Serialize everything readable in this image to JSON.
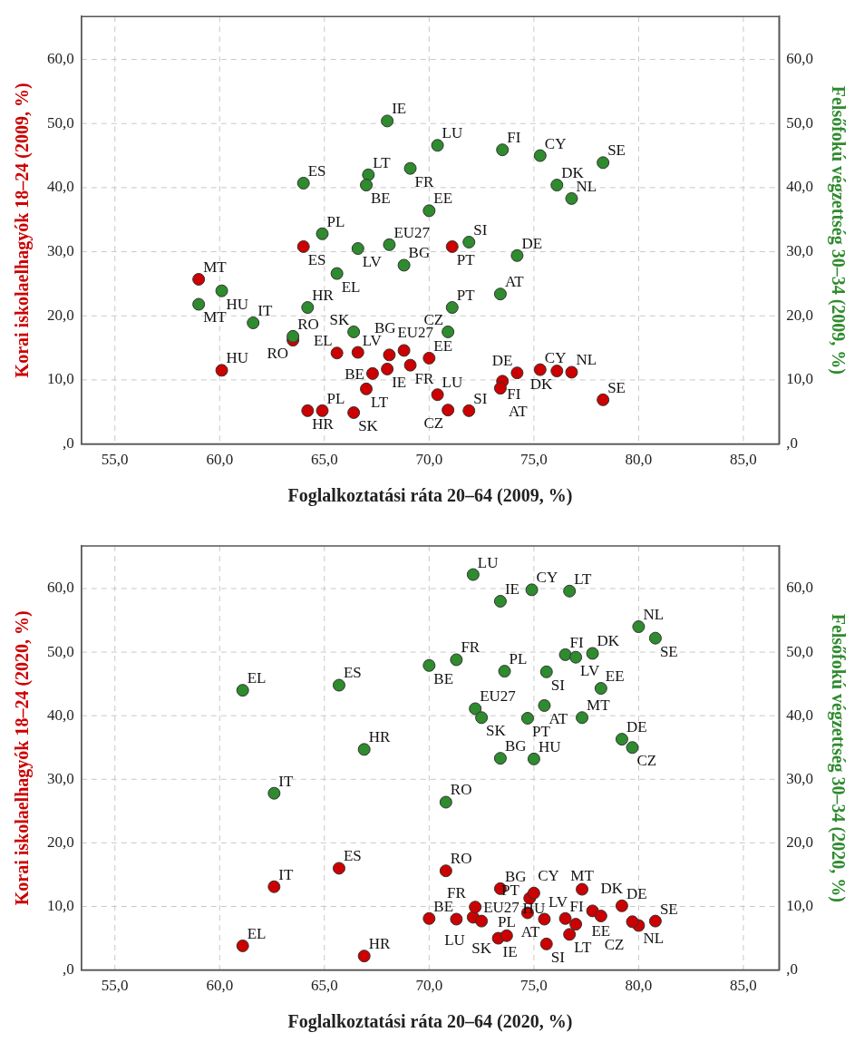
{
  "chart_data": [
    {
      "type": "scatter",
      "xlabel": "Foglalkoztatási ráta 20–64 (2009, %)",
      "ylabel": "Korai iskolaelhagyók 18–24 (2009, %)",
      "y2label": "Felsőfokú végzettség 30–34 (2009, %)",
      "xlim": [
        53.4,
        86.7
      ],
      "ylim": [
        0,
        66.7
      ],
      "y2lim": [
        0,
        66.7
      ],
      "xticks": [
        {
          "value": 55,
          "label": "55,0"
        },
        {
          "value": 60,
          "label": "60,0"
        },
        {
          "value": 65,
          "label": "65,0"
        },
        {
          "value": 70,
          "label": "70,0"
        },
        {
          "value": 75,
          "label": "75,0"
        },
        {
          "value": 80,
          "label": "80,0"
        },
        {
          "value": 85,
          "label": "85,0"
        }
      ],
      "yticks": [
        {
          "value": 0,
          "label": ",0"
        },
        {
          "value": 10,
          "label": "10,0"
        },
        {
          "value": 20,
          "label": "20,0"
        },
        {
          "value": 30,
          "label": "30,0"
        },
        {
          "value": 40,
          "label": "40,0"
        },
        {
          "value": 50,
          "label": "50,0"
        },
        {
          "value": 60,
          "label": "60,0"
        }
      ],
      "y2ticks": [
        {
          "value": 0,
          "label": ",0"
        },
        {
          "value": 10,
          "label": "10,0"
        },
        {
          "value": 20,
          "label": "20,0"
        },
        {
          "value": 30,
          "label": "30,0"
        },
        {
          "value": 40,
          "label": "40,0"
        },
        {
          "value": 50,
          "label": "50,0"
        },
        {
          "value": 60,
          "label": "60,0"
        }
      ],
      "grid": true,
      "legend": false,
      "marker": "circle",
      "series": [
        {
          "color": "#cc0000",
          "x": [
            68.0,
            64.0,
            67.0,
            67.3,
            69.1,
            64.9,
            66.6,
            68.1,
            68.8,
            59.0,
            60.1,
            61.6,
            64.2,
            65.6,
            63.5,
            66.4,
            70.4,
            73.5,
            75.3,
            78.3,
            76.1,
            76.8,
            70.0,
            71.9,
            74.2,
            73.4,
            71.1,
            70.9
          ],
          "values": [
            11.7,
            30.8,
            8.6,
            11.0,
            12.3,
            5.2,
            14.3,
            13.9,
            14.6,
            25.7,
            11.5,
            null,
            5.2,
            14.2,
            16.2,
            4.9,
            7.7,
            9.8,
            11.6,
            6.9,
            11.4,
            11.2,
            13.4,
            5.2,
            11.1,
            8.7,
            30.8,
            5.3
          ]
        },
        {
          "color": "#2e8b2e",
          "axis": "y2",
          "x": [
            68.0,
            64.0,
            67.1,
            67.0,
            69.1,
            64.9,
            66.6,
            68.1,
            68.8,
            59.0,
            60.1,
            61.6,
            64.2,
            65.6,
            63.5,
            66.4,
            70.4,
            73.5,
            75.3,
            78.3,
            76.1,
            76.8,
            70.0,
            71.9,
            74.2,
            73.4,
            71.1,
            70.9
          ],
          "values": [
            50.4,
            40.7,
            42.0,
            40.4,
            43.0,
            32.8,
            30.5,
            31.1,
            27.9,
            21.8,
            23.9,
            18.9,
            21.3,
            26.6,
            16.8,
            17.5,
            46.6,
            45.9,
            45.0,
            43.9,
            40.4,
            38.3,
            36.4,
            31.5,
            29.4,
            23.4,
            21.3,
            17.5
          ]
        }
      ],
      "annotations": [
        {
          "text": "IE",
          "x": 68.0,
          "y": 11.7
        },
        {
          "text": "ES",
          "x": 64.0,
          "y": 30.8
        },
        {
          "text": "LT",
          "x": 67.0,
          "y": 8.6
        },
        {
          "text": "BE",
          "x": 67.3,
          "y": 11.0
        },
        {
          "text": "FR",
          "x": 69.1,
          "y": 12.3
        },
        {
          "text": "PL",
          "x": 64.9,
          "y": 5.2
        },
        {
          "text": "LV",
          "x": 66.6,
          "y": 14.3
        },
        {
          "text": "EU27",
          "x": 68.1,
          "y": 13.9
        },
        {
          "text": "BG",
          "x": 68.8,
          "y": 14.6
        },
        {
          "text": "MT",
          "x": 59.0,
          "y": 25.7
        },
        {
          "text": "HU",
          "x": 60.1,
          "y": 11.5
        },
        {
          "text": "HR",
          "x": 64.2,
          "y": 5.2
        },
        {
          "text": "EL",
          "x": 65.6,
          "y": 14.2
        },
        {
          "text": "RO",
          "x": 63.5,
          "y": 16.2
        },
        {
          "text": "SK",
          "x": 66.4,
          "y": 4.9
        },
        {
          "text": "LU",
          "x": 70.4,
          "y": 7.7
        },
        {
          "text": "FI",
          "x": 73.5,
          "y": 9.8
        },
        {
          "text": "CY",
          "x": 75.3,
          "y": 11.6
        },
        {
          "text": "SE",
          "x": 78.3,
          "y": 6.9
        },
        {
          "text": "DK",
          "x": 76.1,
          "y": 11.4
        },
        {
          "text": "NL",
          "x": 76.8,
          "y": 11.2
        },
        {
          "text": "EE",
          "x": 70.0,
          "y": 13.4
        },
        {
          "text": "SI",
          "x": 71.9,
          "y": 5.2
        },
        {
          "text": "DE",
          "x": 74.2,
          "y": 11.1
        },
        {
          "text": "AT",
          "x": 73.4,
          "y": 8.7
        },
        {
          "text": "PT",
          "x": 71.1,
          "y": 30.8
        },
        {
          "text": "CZ",
          "x": 70.9,
          "y": 5.3
        },
        {
          "text": "IE",
          "x": 68.0,
          "y": 50.4
        },
        {
          "text": "ES",
          "x": 64.0,
          "y": 40.7
        },
        {
          "text": "LT",
          "x": 67.1,
          "y": 42.0
        },
        {
          "text": "BE",
          "x": 67.0,
          "y": 40.4
        },
        {
          "text": "FR",
          "x": 69.1,
          "y": 43.0
        },
        {
          "text": "PL",
          "x": 64.9,
          "y": 32.8
        },
        {
          "text": "LV",
          "x": 66.6,
          "y": 30.5
        },
        {
          "text": "EU27",
          "x": 68.1,
          "y": 31.1
        },
        {
          "text": "BG",
          "x": 68.8,
          "y": 27.9
        },
        {
          "text": "MT",
          "x": 59.0,
          "y": 21.8
        },
        {
          "text": "HU",
          "x": 60.1,
          "y": 23.9
        },
        {
          "text": "IT",
          "x": 61.6,
          "y": 18.9
        },
        {
          "text": "HR",
          "x": 64.2,
          "y": 21.3
        },
        {
          "text": "EL",
          "x": 65.6,
          "y": 26.6
        },
        {
          "text": "RO",
          "x": 63.5,
          "y": 16.8
        },
        {
          "text": "SK",
          "x": 66.4,
          "y": 17.5
        },
        {
          "text": "LU",
          "x": 70.4,
          "y": 46.6
        },
        {
          "text": "FI",
          "x": 73.5,
          "y": 45.9
        },
        {
          "text": "CY",
          "x": 75.3,
          "y": 45.0
        },
        {
          "text": "SE",
          "x": 78.3,
          "y": 43.9
        },
        {
          "text": "DK",
          "x": 76.1,
          "y": 40.4
        },
        {
          "text": "NL",
          "x": 76.8,
          "y": 38.3
        },
        {
          "text": "EE",
          "x": 70.0,
          "y": 36.4
        },
        {
          "text": "SI",
          "x": 71.9,
          "y": 31.5
        },
        {
          "text": "DE",
          "x": 74.2,
          "y": 29.4
        },
        {
          "text": "AT",
          "x": 73.4,
          "y": 23.4
        },
        {
          "text": "PT",
          "x": 71.1,
          "y": 21.3
        },
        {
          "text": "CZ",
          "x": 70.9,
          "y": 17.5
        }
      ]
    },
    {
      "type": "scatter",
      "xlabel": "Foglalkoztatási ráta 20–64 (2020, %)",
      "ylabel": "Korai iskolaelhagyók 18–24 (2020, %)",
      "y2label": "Felsőfokú végzettség 30–34 (2020, %)",
      "xlim": [
        53.4,
        86.7
      ],
      "ylim": [
        0,
        66.7
      ],
      "y2lim": [
        0,
        66.7
      ],
      "xticks": [
        {
          "value": 55,
          "label": "55,0"
        },
        {
          "value": 60,
          "label": "60,0"
        },
        {
          "value": 65,
          "label": "65,0"
        },
        {
          "value": 70,
          "label": "70,0"
        },
        {
          "value": 75,
          "label": "75,0"
        },
        {
          "value": 80,
          "label": "80,0"
        },
        {
          "value": 85,
          "label": "85,0"
        }
      ],
      "yticks": [
        {
          "value": 0,
          "label": ",0"
        },
        {
          "value": 10,
          "label": "10,0"
        },
        {
          "value": 20,
          "label": "20,0"
        },
        {
          "value": 30,
          "label": "30,0"
        },
        {
          "value": 40,
          "label": "40,0"
        },
        {
          "value": 50,
          "label": "50,0"
        },
        {
          "value": 60,
          "label": "60,0"
        }
      ],
      "y2ticks": [
        {
          "value": 0,
          "label": ",0"
        },
        {
          "value": 10,
          "label": "10,0"
        },
        {
          "value": 20,
          "label": "20,0"
        },
        {
          "value": 30,
          "label": "30,0"
        },
        {
          "value": 40,
          "label": "40,0"
        },
        {
          "value": 50,
          "label": "50,0"
        },
        {
          "value": 60,
          "label": "60,0"
        }
      ],
      "grid": true,
      "legend": false,
      "marker": "circle",
      "series": [
        {
          "color": "#cc0000",
          "x": [
            61.1,
            65.7,
            70.0,
            66.9,
            62.6,
            72.1,
            73.3,
            74.8,
            76.7,
            80.0,
            80.8,
            71.3,
            73.7,
            75.6,
            76.5,
            77.0,
            77.8,
            78.2,
            75.5,
            72.2,
            72.5,
            74.7,
            77.3,
            79.2,
            79.7,
            73.4,
            75.0,
            70.8
          ],
          "values": [
            3.8,
            16.0,
            8.1,
            2.2,
            13.1,
            8.3,
            5.0,
            11.3,
            5.6,
            7.0,
            7.7,
            8.0,
            5.4,
            4.1,
            8.1,
            7.2,
            9.3,
            8.5,
            8.0,
            9.9,
            7.7,
            9.0,
            12.7,
            10.1,
            7.6,
            12.8,
            12.1,
            15.6
          ]
        },
        {
          "color": "#2e8b2e",
          "axis": "y2",
          "x": [
            61.1,
            65.7,
            70.0,
            66.9,
            62.6,
            72.1,
            73.4,
            74.9,
            76.7,
            80.0,
            80.8,
            71.3,
            73.6,
            75.6,
            76.5,
            77.0,
            77.8,
            78.2,
            75.5,
            72.2,
            72.5,
            74.7,
            77.3,
            79.2,
            79.7,
            73.4,
            75.0,
            70.8
          ],
          "values": [
            44.0,
            44.8,
            47.9,
            34.7,
            27.8,
            62.2,
            58.0,
            59.8,
            59.6,
            54.0,
            52.2,
            48.8,
            47.0,
            46.9,
            49.6,
            49.2,
            49.8,
            44.3,
            41.6,
            41.1,
            39.7,
            39.6,
            39.7,
            36.3,
            35.0,
            33.3,
            33.2,
            26.4
          ]
        }
      ],
      "annotations": [
        {
          "text": "EL",
          "x": 61.1,
          "y": 3.8
        },
        {
          "text": "ES",
          "x": 65.7,
          "y": 16.0
        },
        {
          "text": "BE",
          "x": 70.0,
          "y": 8.1
        },
        {
          "text": "HR",
          "x": 66.9,
          "y": 2.2
        },
        {
          "text": "IT",
          "x": 62.6,
          "y": 13.1
        },
        {
          "text": "LU",
          "x": 72.1,
          "y": 8.3
        },
        {
          "text": "IE",
          "x": 73.3,
          "y": 5.0
        },
        {
          "text": "CY",
          "x": 74.8,
          "y": 11.3
        },
        {
          "text": "LT",
          "x": 76.7,
          "y": 5.6
        },
        {
          "text": "NL",
          "x": 80.0,
          "y": 7.0
        },
        {
          "text": "SE",
          "x": 80.8,
          "y": 7.7
        },
        {
          "text": "FR",
          "x": 71.3,
          "y": 8.0
        },
        {
          "text": "PL",
          "x": 73.7,
          "y": 5.4
        },
        {
          "text": "SI",
          "x": 75.6,
          "y": 4.1
        },
        {
          "text": "FI",
          "x": 76.5,
          "y": 8.1
        },
        {
          "text": "LV",
          "x": 77.0,
          "y": 7.2
        },
        {
          "text": "DK",
          "x": 77.8,
          "y": 9.3
        },
        {
          "text": "EE",
          "x": 78.2,
          "y": 8.5
        },
        {
          "text": "AT",
          "x": 75.5,
          "y": 8.0
        },
        {
          "text": "EU27",
          "x": 72.2,
          "y": 9.9
        },
        {
          "text": "SK",
          "x": 72.5,
          "y": 7.7
        },
        {
          "text": "PT",
          "x": 74.7,
          "y": 9.0
        },
        {
          "text": "MT",
          "x": 77.3,
          "y": 12.7
        },
        {
          "text": "DE",
          "x": 79.2,
          "y": 10.1
        },
        {
          "text": "CZ",
          "x": 79.7,
          "y": 7.6
        },
        {
          "text": "BG",
          "x": 73.4,
          "y": 12.8
        },
        {
          "text": "HU",
          "x": 75.0,
          "y": 12.1
        },
        {
          "text": "RO",
          "x": 70.8,
          "y": 15.6
        },
        {
          "text": "EL",
          "x": 61.1,
          "y": 44.0
        },
        {
          "text": "ES",
          "x": 65.7,
          "y": 44.8
        },
        {
          "text": "BE",
          "x": 70.0,
          "y": 47.9
        },
        {
          "text": "HR",
          "x": 66.9,
          "y": 34.7
        },
        {
          "text": "IT",
          "x": 62.6,
          "y": 27.8
        },
        {
          "text": "LU",
          "x": 72.1,
          "y": 62.2
        },
        {
          "text": "IE",
          "x": 73.4,
          "y": 58.0
        },
        {
          "text": "CY",
          "x": 74.9,
          "y": 59.8
        },
        {
          "text": "LT",
          "x": 76.7,
          "y": 59.6
        },
        {
          "text": "NL",
          "x": 80.0,
          "y": 54.0
        },
        {
          "text": "SE",
          "x": 80.8,
          "y": 52.2
        },
        {
          "text": "FR",
          "x": 71.3,
          "y": 48.8
        },
        {
          "text": "PL",
          "x": 73.6,
          "y": 47.0
        },
        {
          "text": "SI",
          "x": 75.6,
          "y": 46.9
        },
        {
          "text": "FI",
          "x": 76.5,
          "y": 49.6
        },
        {
          "text": "LV",
          "x": 77.0,
          "y": 49.2
        },
        {
          "text": "DK",
          "x": 77.8,
          "y": 49.8
        },
        {
          "text": "EE",
          "x": 78.2,
          "y": 44.3
        },
        {
          "text": "AT",
          "x": 75.5,
          "y": 41.6
        },
        {
          "text": "EU27",
          "x": 72.2,
          "y": 41.1
        },
        {
          "text": "SK",
          "x": 72.5,
          "y": 39.7
        },
        {
          "text": "PT",
          "x": 74.7,
          "y": 39.6
        },
        {
          "text": "MT",
          "x": 77.3,
          "y": 39.7
        },
        {
          "text": "DE",
          "x": 79.2,
          "y": 36.3
        },
        {
          "text": "CZ",
          "x": 79.7,
          "y": 35.0
        },
        {
          "text": "BG",
          "x": 73.4,
          "y": 33.3
        },
        {
          "text": "HU",
          "x": 75.0,
          "y": 33.2
        },
        {
          "text": "RO",
          "x": 70.8,
          "y": 26.4
        }
      ]
    }
  ]
}
